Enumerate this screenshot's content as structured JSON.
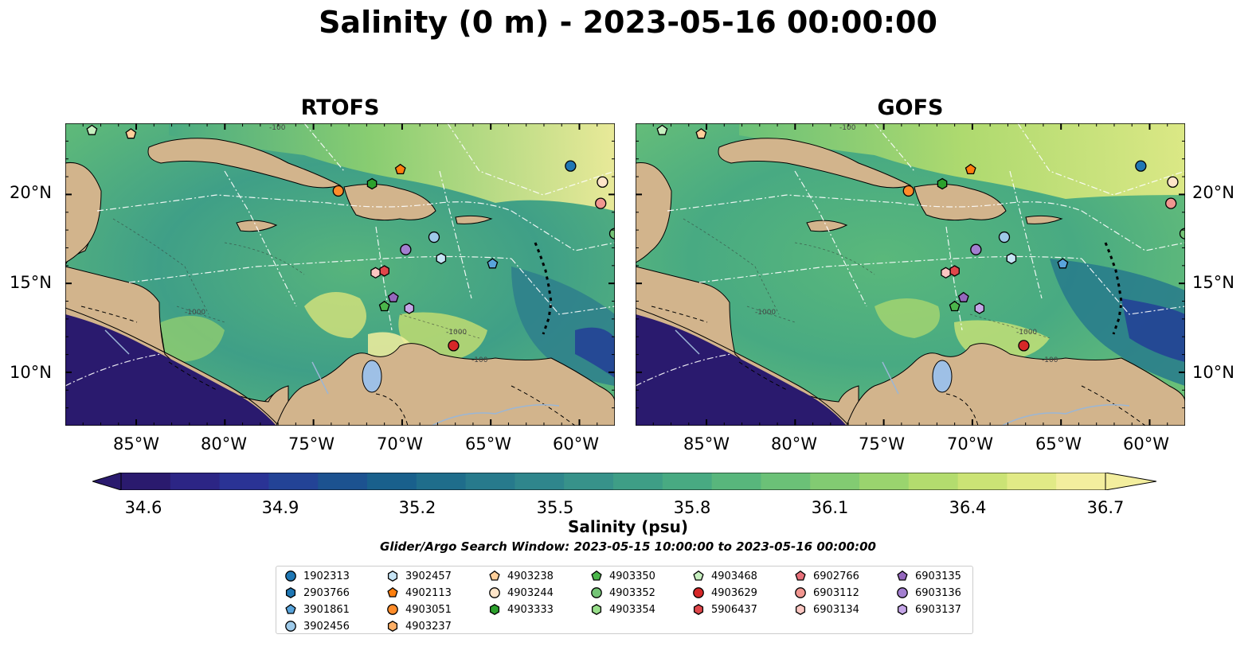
{
  "title": "Salinity (0 m) - 2023-05-16 00:00:00",
  "panels": [
    {
      "title": "RTOFS"
    },
    {
      "title": "GOFS"
    }
  ],
  "longitude_labels": [
    "85°W",
    "80°W",
    "75°W",
    "70°W",
    "65°W",
    "60°W"
  ],
  "latitude_labels": [
    "20°N",
    "15°N",
    "10°N"
  ],
  "bathymetry_labels": [
    "-100",
    "-1000",
    "-1000",
    "-100"
  ],
  "colorbar": {
    "ticks": [
      "34.6",
      "34.9",
      "35.2",
      "35.5",
      "35.8",
      "36.1",
      "36.4",
      "36.7"
    ],
    "label": "Salinity (psu)",
    "colors": [
      "#2a1a6e",
      "#2c2585",
      "#2a3395",
      "#234396",
      "#1c5290",
      "#19608c",
      "#1f6d8b",
      "#277a8c",
      "#2f868c",
      "#37928a",
      "#3e9e86",
      "#48aa82",
      "#58b67c",
      "#6bc177",
      "#82cb72",
      "#9ad46e",
      "#b3dc6e",
      "#cbe375",
      "#e1ea86",
      "#f3ee9e"
    ]
  },
  "search_window": "Glider/Argo Search Window: 2023-05-15 10:00:00 to 2023-05-16 00:00:00",
  "colors": {
    "land": "#d2b48c",
    "lake": "#9ec0e6",
    "deep_ocean": "#2a1a6e",
    "ocean_mid": "#3a9a88",
    "ocean_high": "#a8d86e"
  },
  "floats": [
    {
      "id": "1902313",
      "color": "#1f77b4",
      "marker": "circle",
      "lon": -60.5,
      "lat": 21.6
    },
    {
      "id": "2903766",
      "color": "#1f77b4",
      "marker": "hexagon",
      "lon": null,
      "lat": null
    },
    {
      "id": "3901861",
      "color": "#59a4db",
      "marker": "pentagon",
      "lon": -64.9,
      "lat": 16.1
    },
    {
      "id": "3902456",
      "color": "#9ecae9",
      "marker": "circle",
      "lon": -68.2,
      "lat": 17.6
    },
    {
      "id": "3902457",
      "color": "#c6e4f5",
      "marker": "hexagon",
      "lon": -67.8,
      "lat": 16.4
    },
    {
      "id": "4902113",
      "color": "#ff7f0e",
      "marker": "pentagon",
      "lon": -70.1,
      "lat": 21.4
    },
    {
      "id": "4903051",
      "color": "#ff8c2a",
      "marker": "circle",
      "lon": -73.6,
      "lat": 20.2
    },
    {
      "id": "4903237",
      "color": "#ffb067",
      "marker": "hexagon",
      "lon": null,
      "lat": null
    },
    {
      "id": "4903238",
      "color": "#ffcf9a",
      "marker": "pentagon",
      "lon": -85.3,
      "lat": 23.4
    },
    {
      "id": "4903244",
      "color": "#ffe5c9",
      "marker": "circle",
      "lon": -58.7,
      "lat": 20.7
    },
    {
      "id": "4903333",
      "color": "#2ca02c",
      "marker": "hexagon",
      "lon": -71.7,
      "lat": 20.6
    },
    {
      "id": "4903350",
      "color": "#4bb64b",
      "marker": "pentagon",
      "lon": -71.0,
      "lat": 13.7
    },
    {
      "id": "4903352",
      "color": "#74c476",
      "marker": "circle",
      "lon": -58.0,
      "lat": 17.8
    },
    {
      "id": "4903354",
      "color": "#98df8a",
      "marker": "hexagon",
      "lon": null,
      "lat": null
    },
    {
      "id": "4903468",
      "color": "#c7f0c0",
      "marker": "pentagon",
      "lon": -87.5,
      "lat": 23.6
    },
    {
      "id": "4903629",
      "color": "#d62728",
      "marker": "circle",
      "lon": -67.1,
      "lat": 11.5
    },
    {
      "id": "5906437",
      "color": "#e0474b",
      "marker": "hexagon",
      "lon": -71.0,
      "lat": 15.7
    },
    {
      "id": "6902766",
      "color": "#e7707a",
      "marker": "pentagon",
      "lon": null,
      "lat": null
    },
    {
      "id": "6903112",
      "color": "#f19690",
      "marker": "circle",
      "lon": -58.8,
      "lat": 19.5
    },
    {
      "id": "6903134",
      "color": "#fbc7c2",
      "marker": "hexagon",
      "lon": -71.5,
      "lat": 15.6
    },
    {
      "id": "6903135",
      "color": "#9467bd",
      "marker": "pentagon",
      "lon": -70.5,
      "lat": 14.2
    },
    {
      "id": "6903136",
      "color": "#a37fd0",
      "marker": "circle",
      "lon": -69.8,
      "lat": 16.9
    },
    {
      "id": "6903137",
      "color": "#c5a6e8",
      "marker": "hexagon",
      "lon": -69.6,
      "lat": 13.6
    }
  ]
}
